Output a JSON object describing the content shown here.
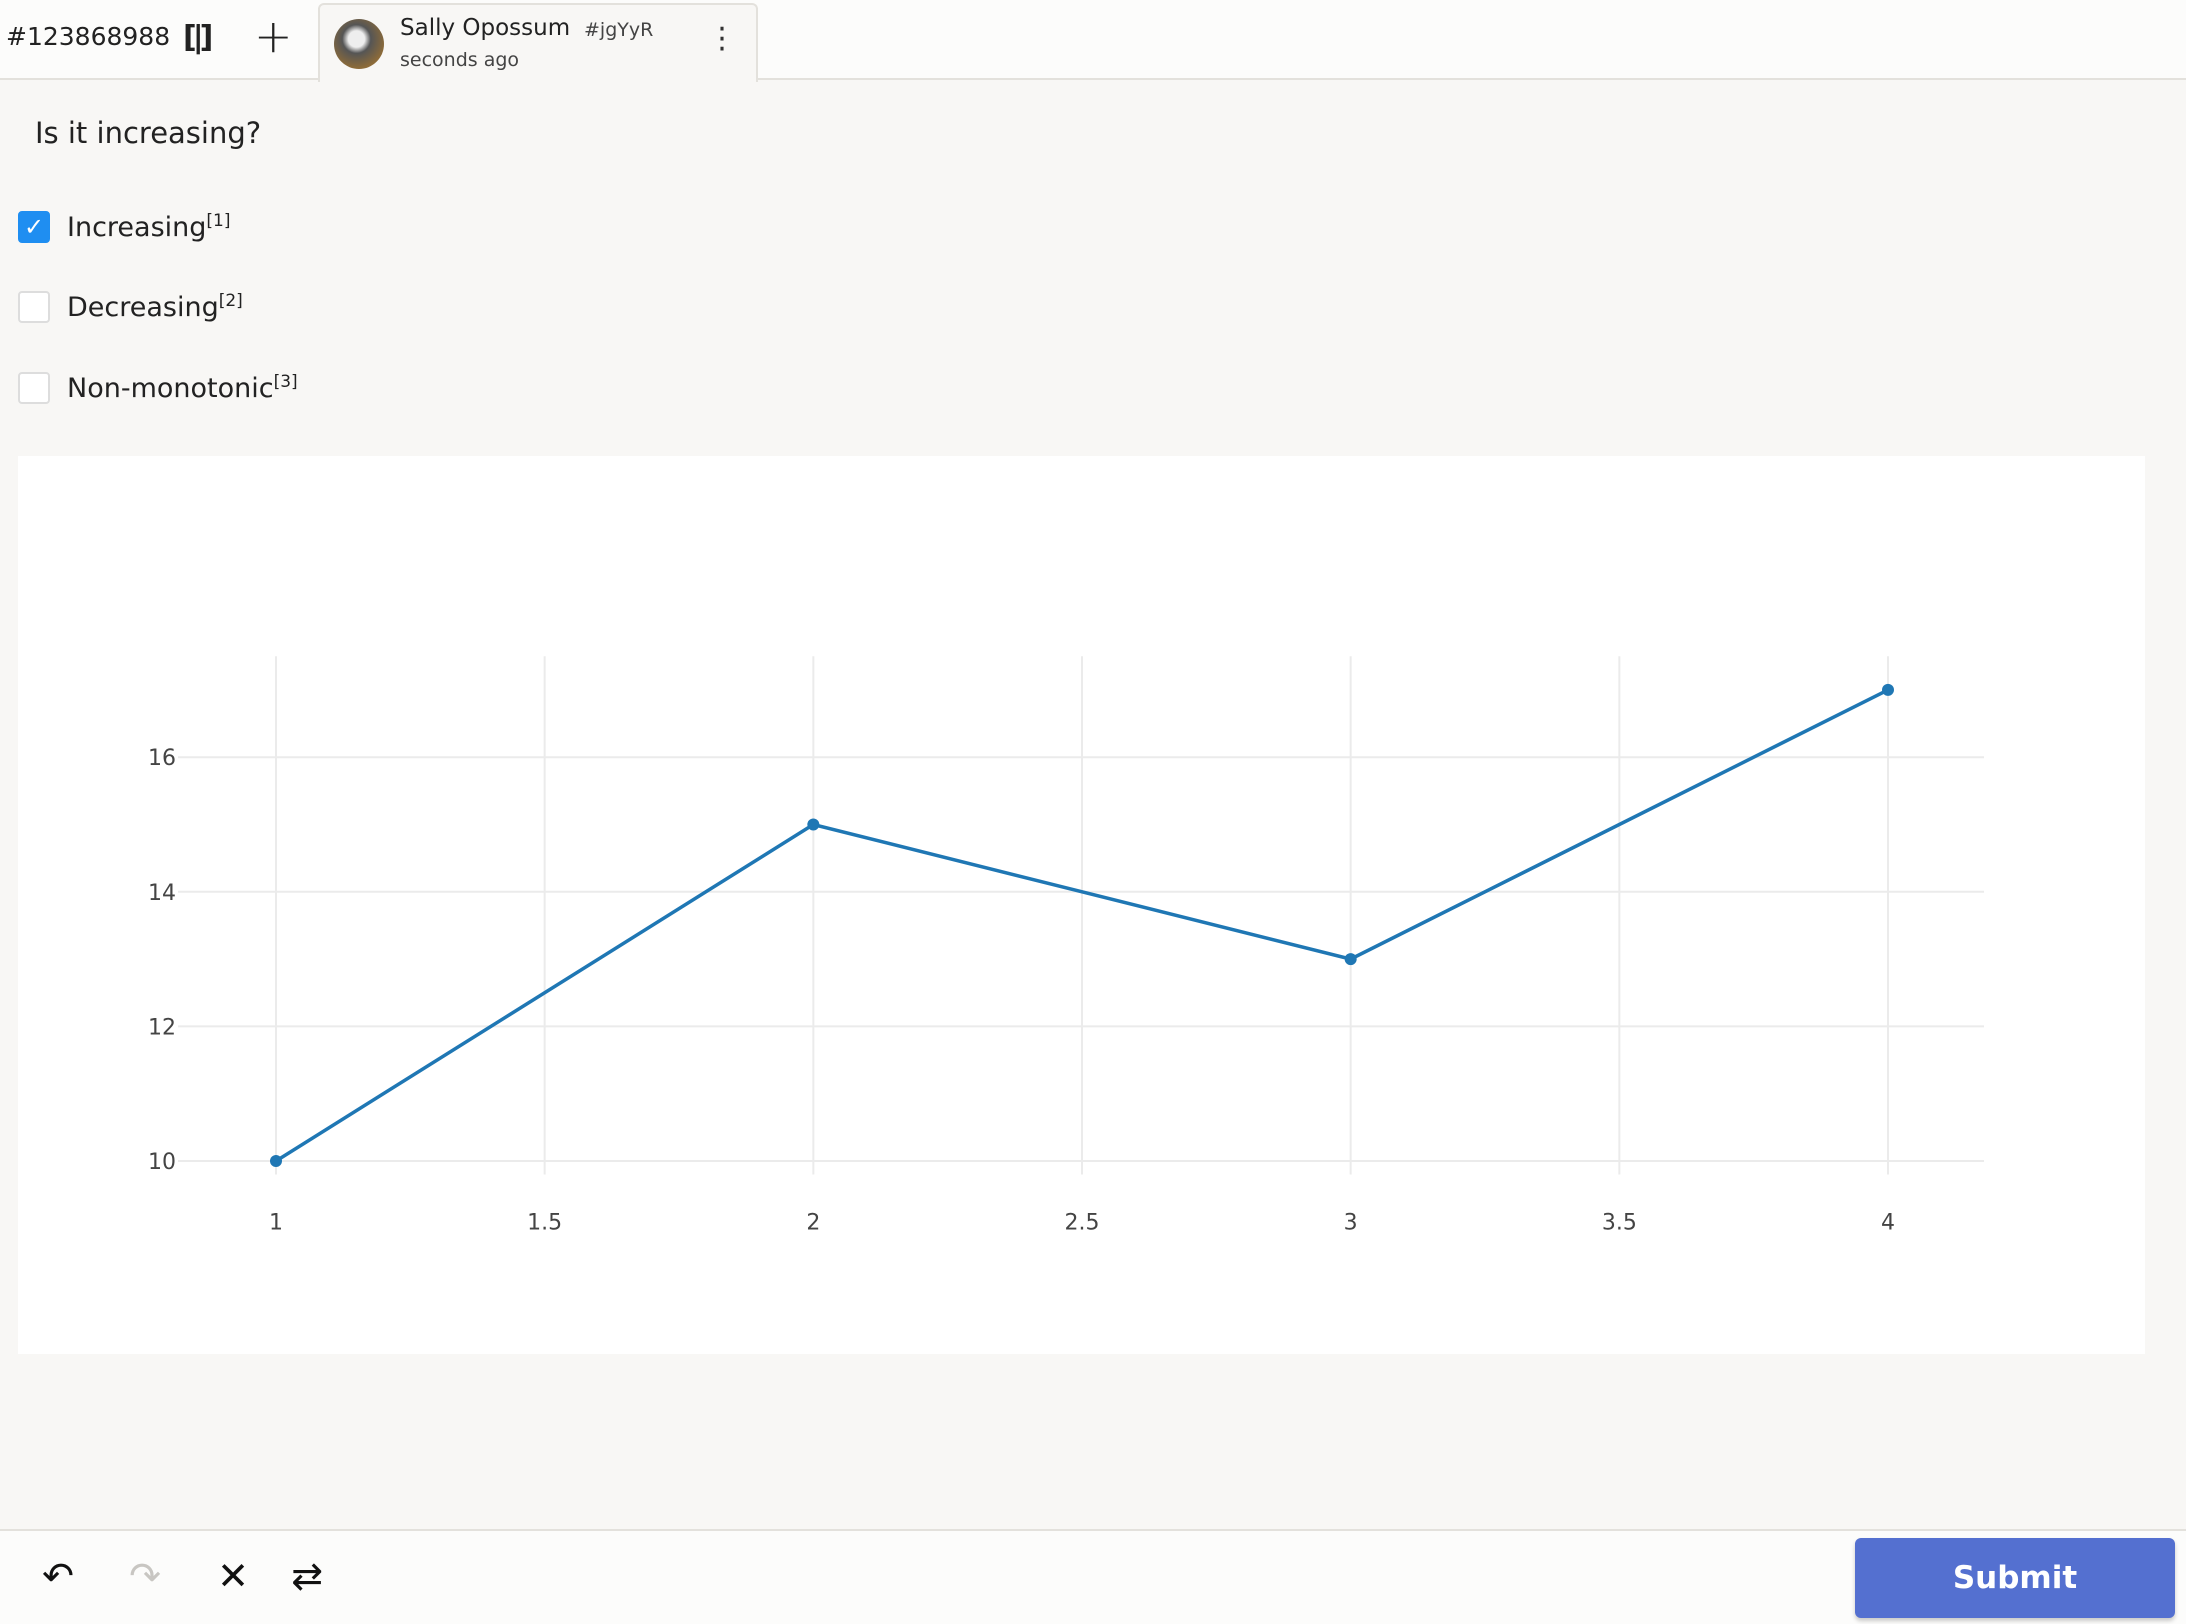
{
  "header": {
    "task_id": "#123868988",
    "split_icon": "split-view-icon",
    "add_icon": "plus-icon",
    "tab": {
      "user_name": "Sally Opossum",
      "user_hash": "#jgYyR",
      "time": "seconds ago",
      "menu_icon": "kebab-icon"
    }
  },
  "question": "Is it increasing?",
  "options": [
    {
      "label": "Increasing",
      "hotkey": "[1]",
      "checked": true
    },
    {
      "label": "Decreasing",
      "hotkey": "[2]",
      "checked": false
    },
    {
      "label": "Non-monotonic",
      "hotkey": "[3]",
      "checked": false
    }
  ],
  "chart_data": {
    "type": "line",
    "x": [
      1,
      2,
      3,
      4
    ],
    "y": [
      10,
      15,
      13,
      17
    ],
    "xlim": [
      0.88,
      4.18
    ],
    "ylim": [
      9.8,
      17.5
    ],
    "x_ticks": [
      "1",
      "1.5",
      "2",
      "2.5",
      "3",
      "3.5",
      "4"
    ],
    "y_ticks": [
      "10",
      "12",
      "14",
      "16"
    ],
    "grid": true,
    "line_color": "#1f77b4",
    "markers": true
  },
  "toolbar": {
    "undo_icon": "undo-icon",
    "redo_icon": "redo-icon",
    "reset_icon": "close-icon",
    "settings_icon": "settings-icon",
    "submit_label": "Submit",
    "accent": "#5470d0"
  }
}
